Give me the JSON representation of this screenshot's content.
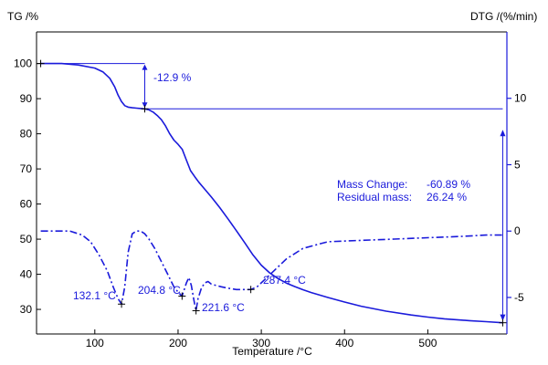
{
  "chart_data": {
    "type": "line",
    "title": "",
    "xlabel": "Temperature /°C",
    "ylabel_left": "TG /%",
    "ylabel_right": "DTG /(%/min)",
    "xlim": [
      30,
      595
    ],
    "ylim_left": [
      23,
      109
    ],
    "ylim_right": [
      -7.75,
      15.0
    ],
    "x_ticks": [
      100,
      200,
      300,
      400,
      500
    ],
    "y_left_ticks": [
      30,
      40,
      50,
      60,
      70,
      80,
      90,
      100
    ],
    "y_right_ticks": [
      -5,
      0,
      5,
      10
    ],
    "grid": false,
    "colors": {
      "series": "#1a1adb",
      "axes": "#000000"
    },
    "series": [
      {
        "axis": "left",
        "style": "solid",
        "x": [
          35,
          60,
          80,
          100,
          110,
          118,
          124,
          128,
          132,
          136,
          140,
          145,
          150,
          155,
          160,
          165,
          170,
          175,
          180,
          185,
          190,
          195,
          200,
          205,
          210,
          215,
          220,
          225,
          230,
          240,
          250,
          260,
          270,
          280,
          290,
          300,
          310,
          320,
          330,
          340,
          350,
          360,
          380,
          400,
          420,
          450,
          480,
          500,
          520,
          550,
          570,
          590
        ],
        "y": [
          100,
          100,
          99.6,
          98.7,
          97.6,
          95.8,
          93.3,
          91.0,
          89.2,
          88.0,
          87.6,
          87.4,
          87.3,
          87.2,
          87.1,
          86.8,
          86.2,
          85.2,
          84.0,
          82.2,
          80.0,
          78.2,
          77.0,
          75.6,
          72.5,
          69.5,
          67.8,
          66.2,
          64.8,
          62.0,
          59.0,
          55.8,
          52.4,
          49.0,
          45.5,
          42.6,
          40.4,
          38.8,
          37.5,
          36.5,
          35.6,
          34.8,
          33.4,
          32.1,
          30.9,
          29.5,
          28.4,
          27.8,
          27.3,
          26.8,
          26.5,
          26.2
        ]
      },
      {
        "axis": "right",
        "style": "dashdot",
        "x": [
          35,
          50,
          70,
          85,
          95,
          105,
          115,
          122,
          128,
          132.1,
          136,
          140,
          145,
          150,
          155,
          160,
          165,
          172,
          180,
          188,
          195,
          200,
          204.8,
          207,
          210,
          213,
          216,
          219,
          221.6,
          224,
          228,
          232,
          236,
          240,
          246,
          252,
          260,
          270,
          280,
          287.4,
          295,
          305,
          315,
          330,
          350,
          380,
          420,
          460,
          500,
          540,
          570,
          590
        ],
        "y": [
          0.0,
          0.0,
          0.0,
          -0.3,
          -0.8,
          -1.8,
          -3.0,
          -4.2,
          -5.1,
          -5.5,
          -4.2,
          -1.6,
          -0.2,
          0.0,
          0.0,
          -0.2,
          -0.6,
          -1.3,
          -2.3,
          -3.3,
          -4.2,
          -4.6,
          -4.9,
          -4.5,
          -3.9,
          -3.5,
          -4.1,
          -5.2,
          -6.0,
          -5.1,
          -4.3,
          -3.9,
          -3.8,
          -4.0,
          -4.1,
          -4.2,
          -4.3,
          -4.4,
          -4.4,
          -4.4,
          -4.2,
          -3.6,
          -3.0,
          -2.1,
          -1.3,
          -0.8,
          -0.7,
          -0.6,
          -0.5,
          -0.4,
          -0.3,
          -0.3
        ]
      }
    ],
    "annotations": {
      "step_label": "-12.9 %",
      "peaks": [
        {
          "x": 132.1,
          "label": "132.1 °C"
        },
        {
          "x": 204.8,
          "label": "204.8 °C"
        },
        {
          "x": 221.6,
          "label": "221.6 °C"
        },
        {
          "x": 287.4,
          "label": "287.4 °C"
        }
      ],
      "mass_change_label": "Mass Change:",
      "mass_change_value": "-60.89 %",
      "residual_label": "Residual mass:",
      "residual_value": "26.24 %"
    }
  }
}
